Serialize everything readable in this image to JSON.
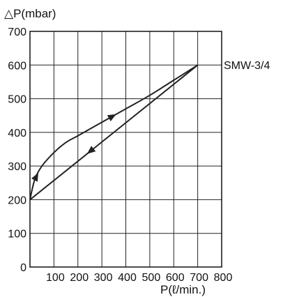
{
  "chart_data": {
    "type": "line",
    "title": "",
    "xlabel": "P(ℓ/min.)",
    "ylabel": "△P(mbar)",
    "xlim": [
      0,
      800
    ],
    "ylim": [
      0,
      700
    ],
    "x_ticks": [
      "100",
      "200",
      "300",
      "400",
      "500",
      "600",
      "700",
      "800"
    ],
    "y_ticks": [
      "0",
      "100",
      "200",
      "300",
      "400",
      "500",
      "600",
      "700"
    ],
    "grid": true,
    "series": [
      {
        "name": "SMW-3/4",
        "x": [
          0,
          20,
          50,
          100,
          150,
          200,
          300,
          400,
          500,
          600,
          700
        ],
        "y": [
          200,
          260,
          300,
          340,
          370,
          390,
          430,
          470,
          510,
          555,
          600
        ],
        "direction": "increasing"
      },
      {
        "name": "",
        "x": [
          700,
          0
        ],
        "y": [
          600,
          200
        ],
        "direction": "decreasing"
      }
    ],
    "colors": {
      "line": "#222222",
      "grid": "#222222"
    }
  }
}
